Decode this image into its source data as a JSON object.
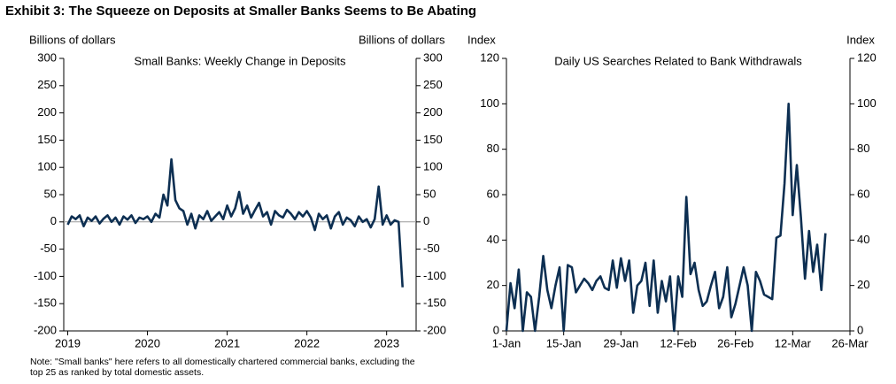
{
  "title": "Exhibit 3: The Squeeze on Deposits at Smaller Banks Seems to Be Abating",
  "note": [
    "Note: \"Small banks\" here refers to all domestically chartered commercial banks, excluding the",
    "top 25 as ranked by total domestic assets."
  ],
  "chart_data": [
    {
      "type": "line",
      "title": "Small Banks: Weekly Change in Deposits",
      "ylabel": "Billions of dollars",
      "y2label": "Billions of dollars",
      "xlim": [
        2018.95,
        2023.37
      ],
      "xticks": [
        2019,
        2020,
        2021,
        2022,
        2023
      ],
      "ylim": [
        -200,
        300
      ],
      "yticks": [
        -200,
        -150,
        -100,
        -50,
        0,
        50,
        100,
        150,
        200,
        250,
        300
      ],
      "y2lim": [
        -200,
        300
      ],
      "y2ticks": [
        -200,
        -150,
        -100,
        -50,
        0,
        50,
        100,
        150,
        200,
        250,
        300
      ],
      "zero_line": true,
      "x": [
        2019.0,
        2019.05,
        2019.1,
        2019.15,
        2019.2,
        2019.25,
        2019.3,
        2019.35,
        2019.4,
        2019.45,
        2019.5,
        2019.55,
        2019.6,
        2019.65,
        2019.7,
        2019.75,
        2019.8,
        2019.85,
        2019.9,
        2019.95,
        2020.0,
        2020.05,
        2020.1,
        2020.15,
        2020.2,
        2020.25,
        2020.3,
        2020.35,
        2020.4,
        2020.45,
        2020.5,
        2020.55,
        2020.6,
        2020.65,
        2020.7,
        2020.75,
        2020.8,
        2020.85,
        2020.9,
        2020.95,
        2021.0,
        2021.05,
        2021.1,
        2021.15,
        2021.2,
        2021.25,
        2021.3,
        2021.35,
        2021.4,
        2021.45,
        2021.5,
        2021.55,
        2021.6,
        2021.65,
        2021.7,
        2021.75,
        2021.8,
        2021.85,
        2021.9,
        2021.95,
        2022.0,
        2022.05,
        2022.1,
        2022.15,
        2022.2,
        2022.25,
        2022.3,
        2022.35,
        2022.4,
        2022.45,
        2022.5,
        2022.55,
        2022.6,
        2022.65,
        2022.7,
        2022.75,
        2022.8,
        2022.85,
        2022.9,
        2022.95,
        2023.0,
        2023.05,
        2023.1,
        2023.15,
        2023.2
      ],
      "series": [
        {
          "color": "#0d2f52",
          "values": [
            -5,
            10,
            5,
            12,
            -8,
            8,
            2,
            10,
            -3,
            6,
            12,
            0,
            8,
            -5,
            10,
            4,
            12,
            -2,
            8,
            5,
            10,
            0,
            15,
            8,
            50,
            30,
            115,
            40,
            25,
            20,
            -5,
            15,
            -12,
            12,
            5,
            20,
            2,
            10,
            18,
            5,
            30,
            10,
            25,
            55,
            15,
            30,
            8,
            22,
            35,
            10,
            18,
            -5,
            20,
            12,
            8,
            22,
            15,
            5,
            18,
            10,
            20,
            8,
            -15,
            15,
            5,
            12,
            -12,
            10,
            18,
            -5,
            8,
            3,
            -8,
            10,
            0,
            5,
            -10,
            5,
            65,
            -5,
            12,
            -5,
            3,
            0,
            -120
          ]
        }
      ]
    },
    {
      "type": "line",
      "title": "Daily US Searches Related to Bank Withdrawals",
      "ylabel": "Index",
      "y2label": "Index",
      "xlim": [
        0,
        84
      ],
      "xticks": [
        {
          "value": 0,
          "label": "1-Jan"
        },
        {
          "value": 14,
          "label": "15-Jan"
        },
        {
          "value": 28,
          "label": "29-Jan"
        },
        {
          "value": 42,
          "label": "12-Feb"
        },
        {
          "value": 56,
          "label": "26-Feb"
        },
        {
          "value": 70,
          "label": "12-Mar"
        },
        {
          "value": 84,
          "label": "26-Mar"
        }
      ],
      "ylim": [
        0,
        120
      ],
      "yticks": [
        0,
        20,
        40,
        60,
        80,
        100,
        120
      ],
      "y2lim": [
        0,
        120
      ],
      "y2ticks": [
        0,
        20,
        40,
        60,
        80,
        100,
        120
      ],
      "zero_line": false,
      "x": [
        0,
        1,
        2,
        3,
        4,
        5,
        6,
        7,
        8,
        9,
        10,
        11,
        12,
        13,
        14,
        15,
        16,
        17,
        18,
        19,
        20,
        21,
        22,
        23,
        24,
        25,
        26,
        27,
        28,
        29,
        30,
        31,
        32,
        33,
        34,
        35,
        36,
        37,
        38,
        39,
        40,
        41,
        42,
        43,
        44,
        45,
        46,
        47,
        48,
        49,
        50,
        51,
        52,
        53,
        54,
        55,
        56,
        57,
        58,
        59,
        60,
        61,
        62,
        63,
        64,
        65,
        66,
        67,
        68,
        69,
        70,
        71,
        72,
        73,
        74,
        75,
        76,
        77,
        78
      ],
      "series": [
        {
          "color": "#0d2f52",
          "values": [
            0,
            21,
            10,
            27,
            0,
            17,
            15,
            0,
            15,
            33,
            18,
            10,
            20,
            28,
            0,
            29,
            28,
            17,
            20,
            23,
            21,
            18,
            22,
            24,
            19,
            18,
            31,
            19,
            32,
            22,
            31,
            8,
            20,
            22,
            30,
            11,
            31,
            8,
            22,
            13,
            24,
            0,
            24,
            15,
            59,
            25,
            30,
            18,
            11,
            13,
            20,
            26,
            10,
            15,
            28,
            6,
            12,
            20,
            28,
            20,
            0,
            26,
            22,
            16,
            15,
            14,
            41,
            42,
            65,
            100,
            51,
            73,
            50,
            23,
            44,
            26,
            38,
            18,
            43
          ]
        }
      ]
    }
  ]
}
